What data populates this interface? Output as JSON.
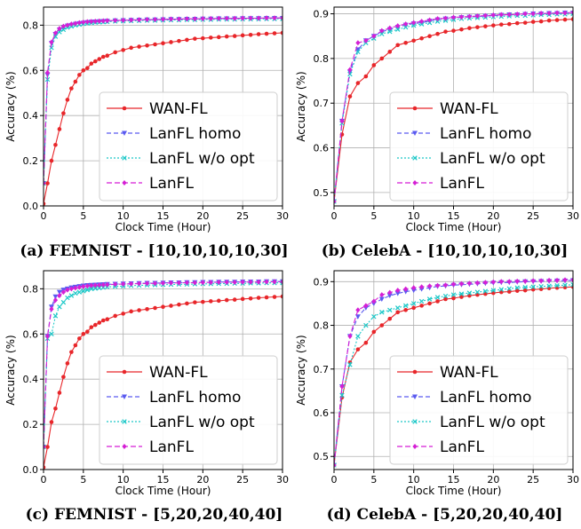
{
  "series_styles": [
    {
      "name": "WAN-FL",
      "color": "#e8262a",
      "dash": "",
      "marker": "circle"
    },
    {
      "name": "LanFL homo",
      "color": "#5a5af0",
      "dash": "5,3",
      "marker": "tri"
    },
    {
      "name": "LanFL w/o opt",
      "color": "#1cc8c8",
      "dash": "2,2",
      "marker": "x"
    },
    {
      "name": "LanFL",
      "color": "#d51fd5",
      "dash": "6,3",
      "marker": "diamond"
    }
  ],
  "chart_data": [
    {
      "type": "line",
      "caption": "(a) FEMNIST - [10,10,10,10,30]",
      "xlabel": "Clock Time (Hour)",
      "ylabel": "Accuracy (%)",
      "xlim": [
        0,
        30
      ],
      "ylim": [
        0.0,
        0.88
      ],
      "xticks": [
        0,
        5,
        10,
        15,
        20,
        25,
        30
      ],
      "yticks": [
        0.0,
        0.2,
        0.4,
        0.6,
        0.8
      ],
      "ytick_labels": [
        "0.0",
        "0.2",
        "0.4",
        "0.6",
        "0.8"
      ],
      "grid": true,
      "legend_position": "bottom-right",
      "x": [
        0,
        0.5,
        1,
        1.5,
        2,
        2.5,
        3,
        3.5,
        4,
        4.5,
        5,
        5.5,
        6,
        6.5,
        7,
        7.5,
        8,
        9,
        10,
        11,
        12,
        13,
        14,
        15,
        16,
        17,
        18,
        19,
        20,
        21,
        22,
        23,
        24,
        25,
        26,
        27,
        28,
        29,
        30
      ],
      "series": [
        {
          "name": "WAN-FL",
          "values": [
            0.01,
            0.1,
            0.2,
            0.27,
            0.34,
            0.41,
            0.47,
            0.52,
            0.55,
            0.58,
            0.6,
            0.61,
            0.63,
            0.64,
            0.65,
            0.66,
            0.665,
            0.68,
            0.69,
            0.7,
            0.705,
            0.71,
            0.715,
            0.72,
            0.725,
            0.73,
            0.735,
            0.74,
            0.742,
            0.745,
            0.747,
            0.75,
            0.752,
            0.755,
            0.757,
            0.76,
            0.762,
            0.764,
            0.766
          ]
        },
        {
          "name": "LanFL homo",
          "values": [
            0.1,
            0.58,
            0.72,
            0.76,
            0.78,
            0.79,
            0.797,
            0.8,
            0.805,
            0.808,
            0.81,
            0.812,
            0.814,
            0.815,
            0.816,
            0.817,
            0.818,
            0.82,
            0.821,
            0.822,
            0.823,
            0.824,
            0.824,
            0.825,
            0.826,
            0.826,
            0.827,
            0.827,
            0.828,
            0.828,
            0.829,
            0.829,
            0.829,
            0.83,
            0.83,
            0.83,
            0.831,
            0.831,
            0.831
          ]
        },
        {
          "name": "LanFL w/o opt",
          "values": [
            0.1,
            0.56,
            0.7,
            0.75,
            0.77,
            0.78,
            0.79,
            0.795,
            0.8,
            0.803,
            0.806,
            0.808,
            0.81,
            0.812,
            0.813,
            0.814,
            0.815,
            0.817,
            0.818,
            0.819,
            0.82,
            0.821,
            0.821,
            0.822,
            0.823,
            0.823,
            0.824,
            0.824,
            0.825,
            0.825,
            0.826,
            0.826,
            0.826,
            0.827,
            0.827,
            0.827,
            0.828,
            0.828,
            0.828
          ]
        },
        {
          "name": "LanFL",
          "values": [
            0.1,
            0.59,
            0.725,
            0.765,
            0.785,
            0.795,
            0.8,
            0.805,
            0.808,
            0.811,
            0.813,
            0.815,
            0.816,
            0.817,
            0.818,
            0.819,
            0.82,
            0.821,
            0.822,
            0.823,
            0.824,
            0.825,
            0.825,
            0.826,
            0.827,
            0.827,
            0.828,
            0.828,
            0.829,
            0.829,
            0.83,
            0.83,
            0.83,
            0.831,
            0.831,
            0.831,
            0.832,
            0.832,
            0.832
          ]
        }
      ]
    },
    {
      "type": "line",
      "caption": "(b) CelebA - [10,10,10,10,30]",
      "xlabel": "Clock Time (Hour)",
      "ylabel": "Accuracy (%)",
      "xlim": [
        0,
        30
      ],
      "ylim": [
        0.47,
        0.915
      ],
      "xticks": [
        0,
        5,
        10,
        15,
        20,
        25,
        30
      ],
      "yticks": [
        0.5,
        0.6,
        0.7,
        0.8,
        0.9
      ],
      "ytick_labels": [
        "0.5",
        "0.6",
        "0.7",
        "0.8",
        "0.9"
      ],
      "grid": true,
      "legend_position": "bottom-right",
      "x": [
        0,
        1,
        2,
        3,
        4,
        5,
        6,
        7,
        8,
        9,
        10,
        11,
        12,
        13,
        14,
        15,
        16,
        17,
        18,
        19,
        20,
        21,
        22,
        23,
        24,
        25,
        26,
        27,
        28,
        29,
        30
      ],
      "series": [
        {
          "name": "WAN-FL",
          "values": [
            0.48,
            0.63,
            0.715,
            0.745,
            0.76,
            0.785,
            0.8,
            0.815,
            0.83,
            0.835,
            0.84,
            0.845,
            0.85,
            0.855,
            0.86,
            0.862,
            0.865,
            0.868,
            0.87,
            0.872,
            0.874,
            0.876,
            0.877,
            0.879,
            0.88,
            0.882,
            0.883,
            0.885,
            0.886,
            0.887,
            0.888
          ]
        },
        {
          "name": "LanFL homo",
          "values": [
            0.48,
            0.66,
            0.77,
            0.82,
            0.84,
            0.85,
            0.86,
            0.865,
            0.87,
            0.875,
            0.878,
            0.88,
            0.884,
            0.887,
            0.889,
            0.89,
            0.892,
            0.893,
            0.894,
            0.895,
            0.896,
            0.897,
            0.898,
            0.898,
            0.899,
            0.9,
            0.9,
            0.901,
            0.901,
            0.902,
            0.902
          ]
        },
        {
          "name": "LanFL w/o opt",
          "values": [
            0.48,
            0.655,
            0.765,
            0.815,
            0.835,
            0.845,
            0.855,
            0.86,
            0.865,
            0.87,
            0.874,
            0.877,
            0.88,
            0.883,
            0.885,
            0.887,
            0.889,
            0.89,
            0.891,
            0.892,
            0.893,
            0.894,
            0.895,
            0.896,
            0.896,
            0.897,
            0.898,
            0.898,
            0.899,
            0.899,
            0.9
          ]
        },
        {
          "name": "LanFL",
          "values": [
            0.48,
            0.66,
            0.775,
            0.835,
            0.84,
            0.85,
            0.862,
            0.868,
            0.873,
            0.877,
            0.88,
            0.883,
            0.886,
            0.889,
            0.89,
            0.892,
            0.893,
            0.894,
            0.895,
            0.896,
            0.897,
            0.898,
            0.898,
            0.899,
            0.9,
            0.9,
            0.901,
            0.901,
            0.902,
            0.902,
            0.903
          ]
        }
      ]
    },
    {
      "type": "line",
      "caption": "(c) FEMNIST - [5,20,20,40,40]",
      "xlabel": "Clock Time (Hour)",
      "ylabel": "Accuracy (%)",
      "xlim": [
        0,
        30
      ],
      "ylim": [
        0.0,
        0.88
      ],
      "xticks": [
        0,
        5,
        10,
        15,
        20,
        25,
        30
      ],
      "yticks": [
        0.0,
        0.2,
        0.4,
        0.6,
        0.8
      ],
      "ytick_labels": [
        "0.0",
        "0.2",
        "0.4",
        "0.6",
        "0.8"
      ],
      "grid": true,
      "legend_position": "bottom-right",
      "x": [
        0,
        0.5,
        1,
        1.5,
        2,
        2.5,
        3,
        3.5,
        4,
        4.5,
        5,
        5.5,
        6,
        6.5,
        7,
        7.5,
        8,
        9,
        10,
        11,
        12,
        13,
        14,
        15,
        16,
        17,
        18,
        19,
        20,
        21,
        22,
        23,
        24,
        25,
        26,
        27,
        28,
        29,
        30
      ],
      "series": [
        {
          "name": "WAN-FL",
          "values": [
            0.01,
            0.1,
            0.21,
            0.27,
            0.34,
            0.41,
            0.47,
            0.52,
            0.55,
            0.58,
            0.6,
            0.61,
            0.63,
            0.64,
            0.65,
            0.66,
            0.665,
            0.68,
            0.69,
            0.7,
            0.705,
            0.71,
            0.715,
            0.72,
            0.725,
            0.73,
            0.735,
            0.74,
            0.742,
            0.745,
            0.747,
            0.75,
            0.752,
            0.755,
            0.757,
            0.76,
            0.762,
            0.764,
            0.766
          ]
        },
        {
          "name": "LanFL homo",
          "values": [
            0.1,
            0.59,
            0.72,
            0.765,
            0.785,
            0.795,
            0.8,
            0.805,
            0.808,
            0.811,
            0.813,
            0.815,
            0.816,
            0.817,
            0.818,
            0.819,
            0.82,
            0.821,
            0.822,
            0.823,
            0.824,
            0.825,
            0.825,
            0.826,
            0.827,
            0.827,
            0.828,
            0.828,
            0.829,
            0.829,
            0.83,
            0.83,
            0.83,
            0.831,
            0.831,
            0.831,
            0.832,
            0.832,
            0.832
          ]
        },
        {
          "name": "LanFL w/o opt",
          "values": [
            0.1,
            0.58,
            0.6,
            0.68,
            0.72,
            0.74,
            0.76,
            0.77,
            0.78,
            0.785,
            0.79,
            0.795,
            0.8,
            0.802,
            0.804,
            0.806,
            0.808,
            0.81,
            0.812,
            0.814,
            0.815,
            0.816,
            0.817,
            0.818,
            0.819,
            0.82,
            0.82,
            0.821,
            0.822,
            0.822,
            0.823,
            0.823,
            0.824,
            0.824,
            0.825,
            0.825,
            0.826,
            0.826,
            0.826
          ]
        },
        {
          "name": "LanFL",
          "values": [
            0.1,
            0.59,
            0.71,
            0.75,
            0.77,
            0.785,
            0.795,
            0.8,
            0.804,
            0.807,
            0.81,
            0.812,
            0.814,
            0.815,
            0.816,
            0.817,
            0.818,
            0.82,
            0.821,
            0.822,
            0.823,
            0.824,
            0.824,
            0.825,
            0.826,
            0.826,
            0.827,
            0.827,
            0.828,
            0.828,
            0.829,
            0.829,
            0.829,
            0.83,
            0.83,
            0.83,
            0.831,
            0.831,
            0.831
          ]
        }
      ]
    },
    {
      "type": "line",
      "caption": "(d) CelebA - [5,20,20,40,40]",
      "xlabel": "Clock Time (Hour)",
      "ylabel": "Accuracy (%)",
      "xlim": [
        0,
        30
      ],
      "ylim": [
        0.47,
        0.925
      ],
      "xticks": [
        0,
        5,
        10,
        15,
        20,
        25,
        30
      ],
      "yticks": [
        0.5,
        0.6,
        0.7,
        0.8,
        0.9
      ],
      "ytick_labels": [
        "0.5",
        "0.6",
        "0.7",
        "0.8",
        "0.9"
      ],
      "grid": true,
      "legend_position": "bottom-right",
      "x": [
        0,
        1,
        2,
        3,
        4,
        5,
        6,
        7,
        8,
        9,
        10,
        11,
        12,
        13,
        14,
        15,
        16,
        17,
        18,
        19,
        20,
        21,
        22,
        23,
        24,
        25,
        26,
        27,
        28,
        29,
        30
      ],
      "series": [
        {
          "name": "WAN-FL",
          "values": [
            0.48,
            0.635,
            0.715,
            0.745,
            0.76,
            0.785,
            0.8,
            0.815,
            0.83,
            0.835,
            0.84,
            0.845,
            0.85,
            0.855,
            0.86,
            0.862,
            0.865,
            0.868,
            0.87,
            0.872,
            0.874,
            0.876,
            0.877,
            0.879,
            0.88,
            0.882,
            0.883,
            0.885,
            0.886,
            0.887,
            0.888
          ]
        },
        {
          "name": "LanFL homo",
          "values": [
            0.48,
            0.66,
            0.775,
            0.82,
            0.84,
            0.85,
            0.86,
            0.868,
            0.873,
            0.877,
            0.88,
            0.883,
            0.886,
            0.889,
            0.89,
            0.892,
            0.893,
            0.894,
            0.895,
            0.896,
            0.897,
            0.898,
            0.898,
            0.899,
            0.9,
            0.9,
            0.901,
            0.901,
            0.902,
            0.902,
            0.903
          ]
        },
        {
          "name": "LanFL w/o opt",
          "values": [
            0.48,
            0.64,
            0.71,
            0.775,
            0.8,
            0.82,
            0.83,
            0.835,
            0.84,
            0.845,
            0.85,
            0.855,
            0.86,
            0.864,
            0.867,
            0.87,
            0.872,
            0.874,
            0.876,
            0.878,
            0.88,
            0.882,
            0.884,
            0.886,
            0.887,
            0.888,
            0.889,
            0.89,
            0.891,
            0.892,
            0.893
          ]
        },
        {
          "name": "LanFL",
          "values": [
            0.48,
            0.66,
            0.775,
            0.835,
            0.845,
            0.855,
            0.87,
            0.875,
            0.88,
            0.883,
            0.886,
            0.888,
            0.89,
            0.891,
            0.892,
            0.894,
            0.895,
            0.896,
            0.897,
            0.898,
            0.899,
            0.9,
            0.9,
            0.901,
            0.901,
            0.902,
            0.902,
            0.903,
            0.903,
            0.904,
            0.904
          ]
        }
      ]
    }
  ]
}
